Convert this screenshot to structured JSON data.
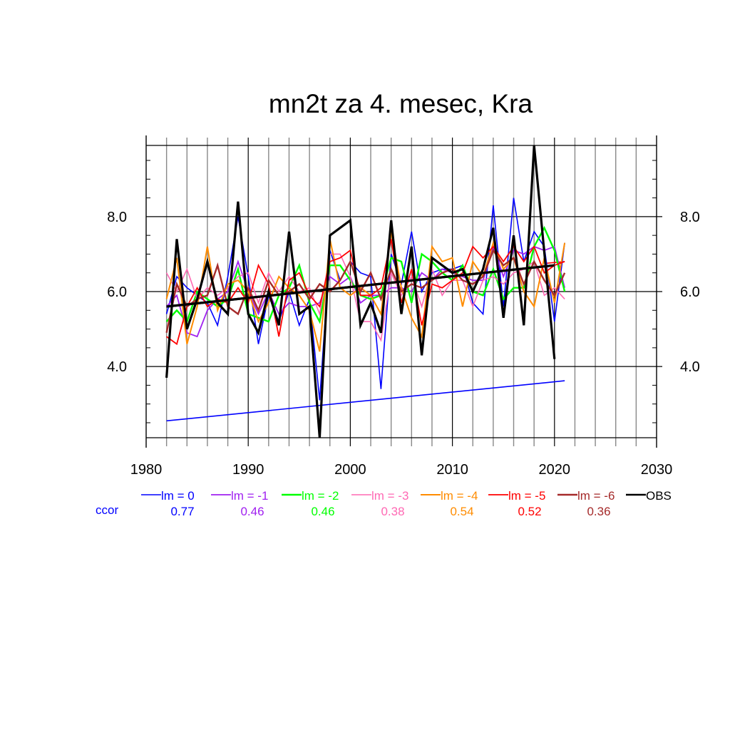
{
  "chart_data": {
    "type": "line",
    "title": "mn2t za 4. mesec, Kra",
    "xlabel": "",
    "ylabel": "",
    "xlim": [
      1980,
      2030
    ],
    "ylim": [
      2.1,
      9.9
    ],
    "x_ticks": [
      1980,
      1990,
      2000,
      2010,
      2020,
      2030
    ],
    "x_tick_labels": [
      "1980",
      "1990",
      "2000",
      "2010",
      "2020",
      "2030"
    ],
    "y_ticks": [
      4.0,
      6.0,
      8.0
    ],
    "y_tick_labels": [
      "4.0",
      "6.0",
      "8.0"
    ],
    "grid": true,
    "legend_placement": "bottom",
    "ccor_label": "ccor",
    "years": [
      1982,
      1983,
      1984,
      1985,
      1986,
      1987,
      1988,
      1989,
      1990,
      1991,
      1992,
      1993,
      1994,
      1995,
      1996,
      1997,
      1998,
      1999,
      2000,
      2001,
      2002,
      2003,
      2004,
      2005,
      2006,
      2007,
      2008,
      2009,
      2010,
      2011,
      2012,
      2013,
      2014,
      2015,
      2016,
      2017,
      2018,
      2019,
      2020,
      2021
    ],
    "series": [
      {
        "name": "lm = 0",
        "color": "#0000ff",
        "ccor": "0.77",
        "width": 1.6,
        "values": [
          5.4,
          6.4,
          6.1,
          5.9,
          5.7,
          5.1,
          6.4,
          8.0,
          6.4,
          4.6,
          5.9,
          5.2,
          6.0,
          5.1,
          5.8,
          3.1,
          7.1,
          6.3,
          6.8,
          6.5,
          6.4,
          3.4,
          7.0,
          6.2,
          7.6,
          6.0,
          6.5,
          6.6,
          6.6,
          6.7,
          5.7,
          5.4,
          8.3,
          5.6,
          8.5,
          6.8,
          7.6,
          7.2,
          5.2,
          7.3
        ]
      },
      {
        "name": "lm = -1",
        "color": "#a020f0",
        "ccor": "0.46",
        "width": 1.8,
        "values": [
          5.6,
          5.9,
          4.9,
          4.8,
          5.5,
          5.8,
          6.0,
          6.8,
          6.0,
          5.4,
          6.0,
          5.4,
          5.7,
          5.6,
          5.6,
          5.7,
          6.4,
          6.2,
          6.4,
          5.7,
          5.9,
          5.9,
          6.1,
          6.1,
          6.0,
          6.5,
          6.3,
          6.6,
          6.5,
          6.4,
          6.3,
          6.3,
          7.2,
          6.4,
          7.1,
          7.0,
          7.2,
          7.1,
          7.2,
          6.1
        ]
      },
      {
        "name": "lm = -2",
        "color": "#00ff00",
        "ccor": "0.46",
        "width": 2.4,
        "values": [
          5.2,
          5.5,
          5.2,
          6.0,
          5.8,
          5.6,
          5.8,
          6.6,
          5.4,
          5.3,
          5.2,
          5.9,
          6.1,
          6.7,
          5.7,
          5.2,
          6.7,
          6.7,
          6.3,
          5.9,
          5.8,
          5.9,
          6.9,
          6.8,
          5.7,
          7.0,
          6.8,
          6.5,
          6.3,
          6.7,
          6.0,
          5.9,
          6.6,
          5.8,
          6.1,
          6.1,
          7.2,
          7.7,
          7.1,
          6.0
        ]
      },
      {
        "name": "lm = -3",
        "color": "#ff69b4",
        "ccor": "0.38",
        "width": 1.6,
        "values": [
          6.5,
          6.0,
          6.6,
          5.8,
          6.1,
          5.9,
          6.1,
          6.4,
          6.5,
          5.7,
          6.5,
          6.0,
          6.4,
          6.0,
          6.1,
          5.4,
          7.0,
          7.0,
          6.4,
          5.2,
          5.2,
          4.7,
          6.5,
          5.9,
          6.4,
          5.6,
          6.6,
          5.9,
          6.3,
          6.3,
          5.6,
          6.3,
          6.4,
          6.2,
          6.5,
          6.6,
          6.8,
          5.9,
          6.1,
          5.8
        ]
      },
      {
        "name": "lm = -4",
        "color": "#ff8c00",
        "ccor": "0.54",
        "width": 2.0,
        "values": [
          5.8,
          6.9,
          4.6,
          5.6,
          7.2,
          5.5,
          6.2,
          6.3,
          6.0,
          5.2,
          5.7,
          6.4,
          6.1,
          5.9,
          5.5,
          4.4,
          7.4,
          6.1,
          5.9,
          6.1,
          5.9,
          5.4,
          7.6,
          6.1,
          5.3,
          4.8,
          7.2,
          6.8,
          6.9,
          5.6,
          6.8,
          6.4,
          7.3,
          6.6,
          6.9,
          6.0,
          5.6,
          6.9,
          5.7,
          7.3
        ]
      },
      {
        "name": "lm = -5",
        "color": "#ff0000",
        "ccor": "0.52",
        "width": 1.8,
        "values": [
          4.8,
          4.6,
          5.6,
          6.1,
          5.6,
          5.8,
          5.7,
          6.1,
          5.7,
          6.7,
          6.2,
          4.8,
          6.3,
          6.5,
          5.9,
          5.6,
          6.8,
          6.9,
          7.1,
          5.9,
          5.9,
          6.1,
          7.4,
          5.7,
          6.6,
          5.1,
          6.2,
          6.1,
          6.3,
          6.5,
          7.2,
          6.9,
          7.2,
          6.8,
          7.2,
          6.8,
          7.2,
          6.5,
          6.7,
          6.8
        ]
      },
      {
        "name": "lm = -6",
        "color": "#a52a2a",
        "ccor": "0.36",
        "width": 2.4,
        "values": [
          4.9,
          6.2,
          5.6,
          5.8,
          5.9,
          6.7,
          5.6,
          5.4,
          6.1,
          5.5,
          6.3,
          5.9,
          6.0,
          6.2,
          5.8,
          6.2,
          6.0,
          6.3,
          6.8,
          6.0,
          6.5,
          5.8,
          6.6,
          6.0,
          6.2,
          6.1,
          6.3,
          6.5,
          6.6,
          6.3,
          6.2,
          6.4,
          7.1,
          6.7,
          6.9,
          6.2,
          6.8,
          6.3,
          5.9,
          6.5
        ]
      },
      {
        "name": "OBS",
        "color": "#000000",
        "ccor": "",
        "width": 3.2,
        "values": [
          3.7,
          7.4,
          5.0,
          5.8,
          6.8,
          5.7,
          5.4,
          8.4,
          5.4,
          4.9,
          6.0,
          5.1,
          7.6,
          5.4,
          5.6,
          2.1,
          7.5,
          null,
          7.9,
          5.1,
          5.7,
          4.9,
          7.9,
          5.4,
          7.2,
          4.3,
          6.9,
          6.7,
          6.5,
          6.6,
          6.0,
          6.6,
          7.7,
          5.3,
          7.5,
          5.1,
          9.9,
          null,
          4.2,
          null
        ]
      }
    ],
    "trend_lines": [
      {
        "name": "OBS trend",
        "color": "#000000",
        "x": [
          1982,
          2020
        ],
        "y": [
          5.6,
          6.7
        ],
        "width": 3.2
      },
      {
        "name": "lm = -5 trend",
        "color": "#ff0000",
        "x": [
          2019,
          2021
        ],
        "y": [
          6.75,
          6.8
        ],
        "width": 1.6
      },
      {
        "name": "lower blue trend",
        "color": "#0000ff",
        "x": [
          1982,
          2021
        ],
        "y": [
          2.55,
          3.62
        ],
        "width": 1.6
      }
    ]
  }
}
